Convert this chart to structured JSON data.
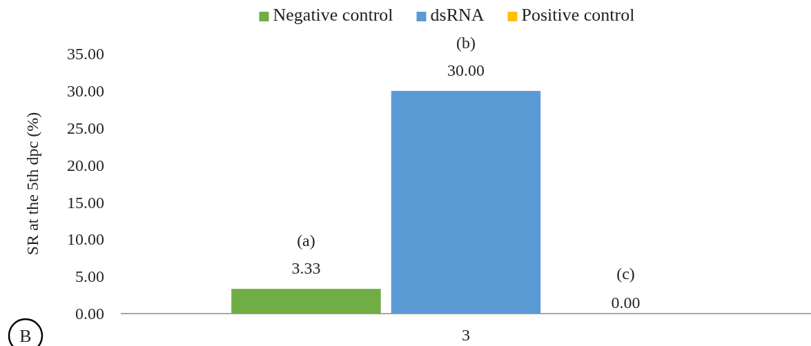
{
  "chart_data": {
    "type": "bar",
    "ylabel": "SR at the 5th dpc (%)",
    "categories": [
      "3"
    ],
    "series": [
      {
        "name": "Negative control",
        "color": "#70ad47",
        "values": [
          3.33
        ],
        "value_labels": [
          "3.33"
        ]
      },
      {
        "name": "dsRNA",
        "color": "#5b9bd5",
        "values": [
          30
        ],
        "value_labels": [
          "30.00"
        ]
      },
      {
        "name": "Positive control",
        "color": "#ffc000",
        "values": [
          0
        ]
      }
    ],
    "ylim": [
      0,
      35
    ],
    "yticks": [
      {
        "value": 0,
        "label": "0.00"
      },
      {
        "value": 5,
        "label": "5.00"
      },
      {
        "value": 10,
        "label": "10.00"
      },
      {
        "value": 15,
        "label": "15.00"
      },
      {
        "value": 20,
        "label": "20.00"
      },
      {
        "value": 25,
        "label": "25.00"
      },
      {
        "value": 30,
        "label": "30.00"
      },
      {
        "value": 35,
        "label": "35.00"
      }
    ],
    "annotations": [
      "(a)",
      "(b)",
      "(c)",
      "0.00",
      "B"
    ],
    "legend": "top",
    "grid": false
  }
}
